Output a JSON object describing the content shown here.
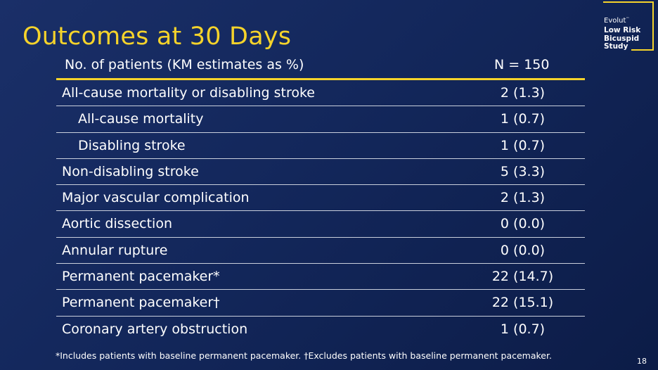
{
  "slide": {
    "title": "Outcomes at 30 Days",
    "colors": {
      "accent": "#f5d32b",
      "background": "#142a5e",
      "text": "#ffffff",
      "rule": "#c9cfdc"
    }
  },
  "brand": {
    "line1": "Evolut",
    "line1_mark": "™",
    "line2": "Low Risk",
    "line3": "Bicuspid",
    "line4": "Study"
  },
  "table": {
    "header": {
      "label": "No. of patients (KM estimates as %)",
      "value": "N = 150"
    },
    "rows": [
      {
        "label": "All-cause mortality or disabling stroke",
        "value": "2 (1.3)"
      },
      {
        "label": "All-cause mortality",
        "value": "1 (0.7)"
      },
      {
        "label": "Disabling stroke",
        "value": "1 (0.7)"
      },
      {
        "label": "Non-disabling stroke",
        "value": "5 (3.3)"
      },
      {
        "label": "Major vascular complication",
        "value": "2 (1.3)"
      },
      {
        "label": "Aortic dissection",
        "value": "0 (0.0)"
      },
      {
        "label": "Annular rupture",
        "value": "0 (0.0)"
      },
      {
        "label": "Permanent pacemaker*",
        "value": "22 (14.7)"
      },
      {
        "label": "Permanent pacemaker†",
        "value": "22 (15.1)"
      },
      {
        "label": "Coronary artery obstruction",
        "value": "1 (0.7)"
      }
    ]
  },
  "footnote": "*Includes patients with baseline permanent pacemaker. †Excludes patients with baseline permanent pacemaker.",
  "page_number": "18"
}
